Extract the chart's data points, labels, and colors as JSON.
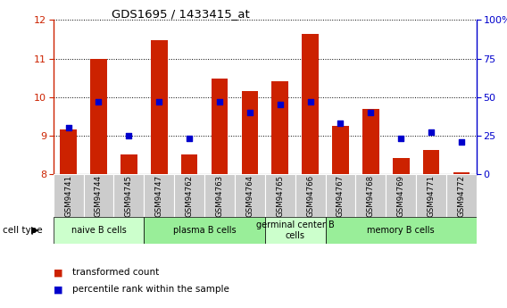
{
  "title": "GDS1695 / 1433415_at",
  "samples": [
    "GSM94741",
    "GSM94744",
    "GSM94745",
    "GSM94747",
    "GSM94762",
    "GSM94763",
    "GSM94764",
    "GSM94765",
    "GSM94766",
    "GSM94767",
    "GSM94768",
    "GSM94769",
    "GSM94771",
    "GSM94772"
  ],
  "transformed_count": [
    9.15,
    10.98,
    8.52,
    11.47,
    8.52,
    10.47,
    10.15,
    10.42,
    11.65,
    9.25,
    9.68,
    8.42,
    8.62,
    8.05
  ],
  "percentile_rank": [
    30,
    47,
    25,
    47,
    23,
    47,
    40,
    45,
    47,
    33,
    40,
    23,
    27,
    21
  ],
  "ylim_left": [
    8,
    12
  ],
  "ylim_right": [
    0,
    100
  ],
  "yticks_left": [
    8,
    9,
    10,
    11,
    12
  ],
  "yticks_right": [
    0,
    25,
    50,
    75,
    100
  ],
  "group_bounds": [
    [
      0,
      3,
      "naive B cells"
    ],
    [
      3,
      7,
      "plasma B cells"
    ],
    [
      7,
      9,
      "germinal center B\ncells"
    ],
    [
      9,
      14,
      "memory B cells"
    ]
  ],
  "group_colors": [
    "#ccffcc",
    "#99ee99",
    "#ccffcc",
    "#99ee99"
  ],
  "bar_color": "#cc2200",
  "dot_color": "#0000cc",
  "left_axis_color": "#cc2200",
  "right_axis_color": "#0000cc",
  "plot_bg_color": "#ffffff",
  "sample_box_color": "#cccccc",
  "legend_items": [
    "transformed count",
    "percentile rank within the sample"
  ]
}
